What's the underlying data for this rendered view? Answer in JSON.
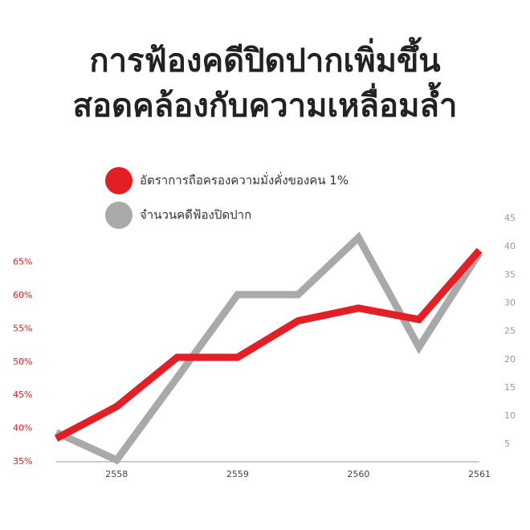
{
  "chart_data": {
    "type": "line",
    "title": [
      "การฟ้องคดีปิดปากเพิ่มขึ้น",
      "สอดคล้องกับความเหลื่อมล้ำ"
    ],
    "x": [
      2557.5,
      2558,
      2558.5,
      2559,
      2559.5,
      2560,
      2560.5,
      2561
    ],
    "xlim": [
      2557.5,
      2561
    ],
    "xticks": [
      2558,
      2559,
      2560,
      2561
    ],
    "ylim": [
      35,
      71.6
    ],
    "yticks": [
      {
        "value": 35,
        "label": "35%"
      },
      {
        "value": 40,
        "label": "40%"
      },
      {
        "value": 45,
        "label": "45%"
      },
      {
        "value": 50,
        "label": "50%"
      },
      {
        "value": 55,
        "label": "55%"
      },
      {
        "value": 60,
        "label": "60%"
      },
      {
        "value": 65,
        "label": "65%"
      }
    ],
    "y2lim": [
      1.9,
      45
    ],
    "y2ticks": [
      5,
      10,
      15,
      20,
      25,
      30,
      35,
      40,
      45
    ],
    "series": [
      {
        "name": "อัตราการถือครองความมั่งคั่งของคน 1%",
        "color": "#e31e24",
        "values": [
          38.5,
          43.3,
          50.7,
          50.7,
          56.2,
          58.1,
          56.4,
          66.8
        ]
      },
      {
        "name": "จำนวนคดีฟ้องปิดปาก",
        "color": "#a7aaa8",
        "axis": "y2",
        "values": [
          7.1,
          2.2,
          16.8,
          31.5,
          31.5,
          41.6,
          22.2,
          38.9
        ]
      }
    ]
  }
}
